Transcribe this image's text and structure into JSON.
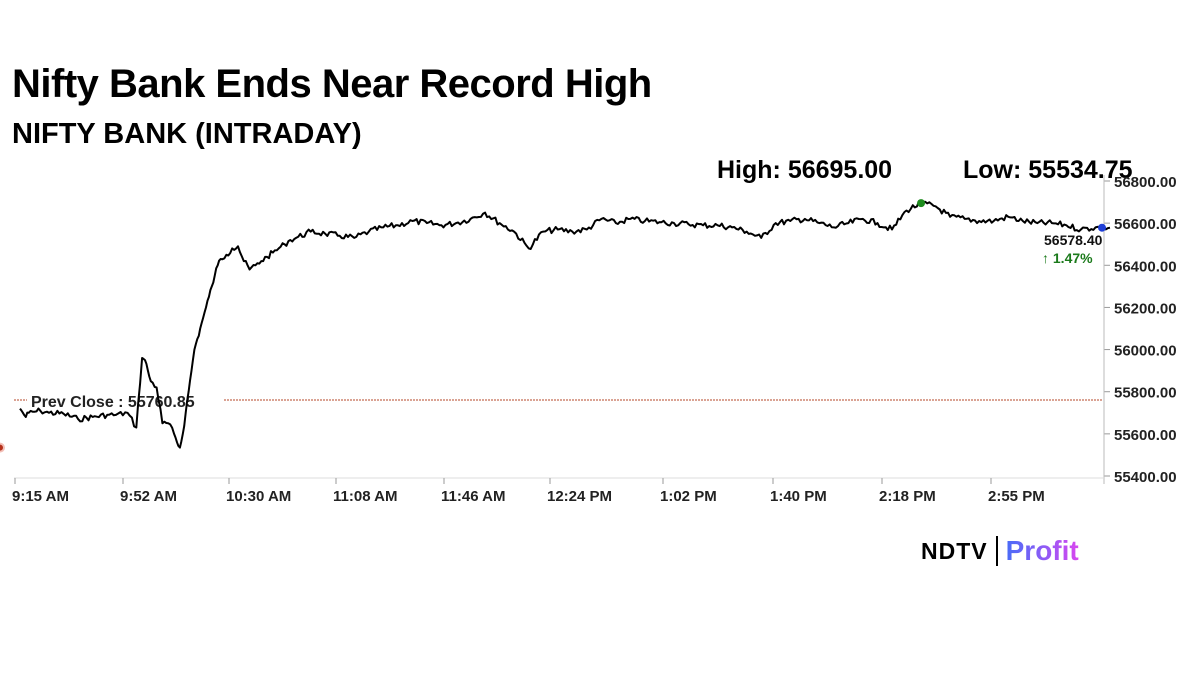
{
  "headline": "Nifty Bank Ends Near Record High",
  "subtitle": "NIFTY BANK (INTRADAY)",
  "stats": {
    "high_label": "High: 56695.00",
    "low_label": "Low: 55534.75"
  },
  "prev_close_label": "Prev Close : 55760.85",
  "last_label": "56578.40",
  "change_label": "↑ 1.47%",
  "logo": {
    "ndtv": "NDTV",
    "profit": "Profit"
  },
  "colors": {
    "line": "#000000",
    "prev_close_line": "#b5472a",
    "high_marker": "#1e8c1e",
    "low_marker": "#b5301a",
    "last_marker": "#1f3fd6",
    "change_text": "#1b7a1b"
  },
  "chart_data": {
    "type": "line",
    "title": "NIFTY BANK (INTRADAY)",
    "xlabel": "",
    "ylabel": "",
    "x_ticks": [
      "9:15 AM",
      "9:52 AM",
      "10:30 AM",
      "11:08 AM",
      "11:46 AM",
      "12:24 PM",
      "1:02 PM",
      "1:40 PM",
      "2:18 PM",
      "2:55 PM"
    ],
    "y_ticks": [
      "55400.00",
      "55600.00",
      "55800.00",
      "56000.00",
      "56200.00",
      "56400.00",
      "56600.00",
      "56800.00"
    ],
    "ylim": [
      55400,
      56850
    ],
    "x_minutes_range": [
      555,
      930
    ],
    "prev_close": 55760.85,
    "high": 56695.0,
    "low": 55534.75,
    "last": 56578.4,
    "change_pct": 1.47,
    "grid": false,
    "series": [
      {
        "x": [
          555,
          556,
          557,
          558,
          560,
          562,
          565,
          570,
          575,
          580,
          585,
          588,
          592,
          595,
          597,
          598,
          599,
          600,
          602,
          604,
          606,
          608,
          609,
          610,
          611,
          612,
          613,
          614,
          615,
          616,
          617,
          618,
          619,
          620,
          621,
          622,
          623,
          624,
          626,
          628,
          630,
          632,
          634,
          636,
          638,
          640,
          642,
          644,
          646,
          648,
          650,
          655,
          660,
          665,
          670,
          675,
          680,
          685,
          690,
          695,
          700,
          705,
          710,
          715,
          720,
          725,
          730,
          735,
          740,
          745,
          750,
          755,
          760,
          765,
          770,
          775,
          780,
          785,
          790,
          795,
          800,
          805,
          810,
          815,
          820,
          825,
          830,
          835,
          840,
          845,
          850,
          855,
          860,
          865,
          870,
          875,
          880,
          885,
          890,
          895,
          900,
          905,
          910,
          915,
          920,
          925,
          930
        ],
        "y": [
          55720,
          55700,
          55680,
          55700,
          55705,
          55710,
          55700,
          55695,
          55670,
          55680,
          55690,
          55690,
          55700,
          55630,
          55960,
          55950,
          55900,
          55850,
          55820,
          55650,
          55650,
          55600,
          55560,
          55535,
          55600,
          55700,
          55800,
          55900,
          56000,
          56050,
          56100,
          56150,
          56200,
          56250,
          56300,
          56350,
          56400,
          56430,
          56450,
          56480,
          56490,
          56420,
          56380,
          56400,
          56420,
          56440,
          56460,
          56480,
          56500,
          56520,
          56530,
          56560,
          56550,
          56540,
          56530,
          56560,
          56580,
          56590,
          56610,
          56600,
          56590,
          56600,
          56620,
          56650,
          56600,
          56560,
          56480,
          56560,
          56570,
          56560,
          56570,
          56620,
          56600,
          56620,
          56610,
          56605,
          56600,
          56595,
          56590,
          56590,
          56580,
          56560,
          56530,
          56600,
          56610,
          56620,
          56600,
          56580,
          56600,
          56620,
          56600,
          56570,
          56660,
          56695,
          56680,
          56630,
          56620,
          56610,
          56610,
          56630,
          56610,
          56600,
          56600,
          56590,
          56570,
          56580,
          56578.4
        ]
      }
    ]
  }
}
